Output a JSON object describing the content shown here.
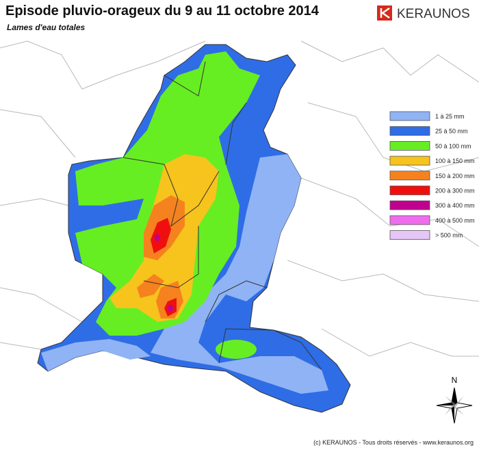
{
  "header": {
    "title": "Episode pluvio-orageux du 9 au 11 octobre 2014",
    "subtitle": "Lames d'eau totales",
    "brand": "KERAUNOS"
  },
  "legend": {
    "items": [
      {
        "label": "1 à 25 mm",
        "color": "#8fb3f4"
      },
      {
        "label": "25 à 50 mm",
        "color": "#2f6de6"
      },
      {
        "label": "50 à 100 mm",
        "color": "#66ee22"
      },
      {
        "label": "100 à 150 mm",
        "color": "#f7c31d"
      },
      {
        "label": "150 à 200 mm",
        "color": "#f5821e"
      },
      {
        "label": "200 à 300 mm",
        "color": "#f00f0f"
      },
      {
        "label": "300 à 400 mm",
        "color": "#c0008f"
      },
      {
        "label": "400 à 500 mm",
        "color": "#ee6ded"
      },
      {
        "label": "> 500 mm",
        "color": "#e6c6f6"
      }
    ]
  },
  "compass": {
    "label": "N"
  },
  "footer": {
    "copyright": "(c) KERAUNOS - Tous droits réservés - www.keraunos.org"
  }
}
